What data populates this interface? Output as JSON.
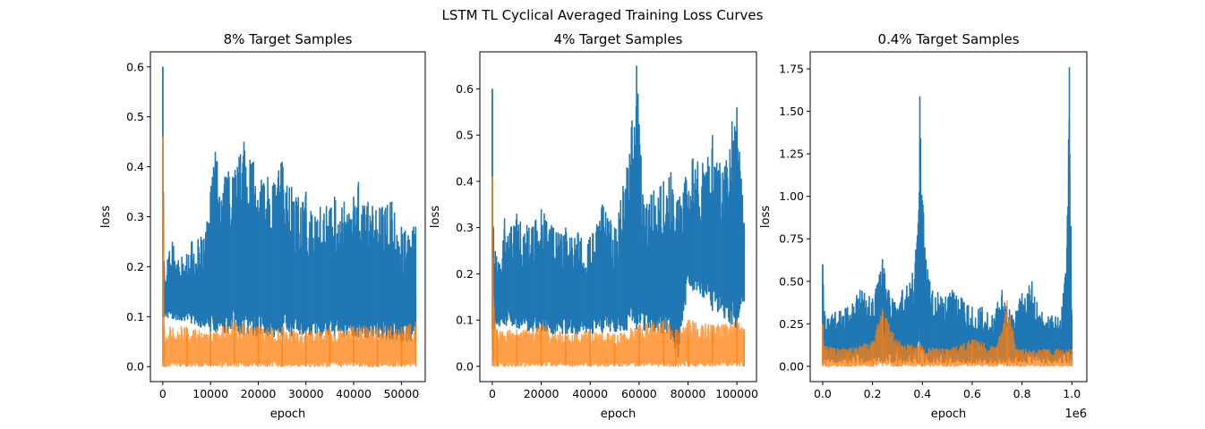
{
  "figure": {
    "suptitle": "LSTM TL Cyclical Averaged Training Loss Curves"
  },
  "colors": {
    "blue": "#1f77b4",
    "orange": "#ff7f0e"
  },
  "chart_data": [
    {
      "type": "line",
      "title": "8% Target Samples",
      "xlabel": "epoch",
      "ylabel": "loss",
      "xlim": [
        -2600,
        55000
      ],
      "ylim": [
        -0.03,
        0.63
      ],
      "xticks": [
        0,
        10000,
        20000,
        30000,
        40000,
        50000
      ],
      "xtick_labels": [
        "0",
        "10000",
        "20000",
        "30000",
        "40000",
        "50000"
      ],
      "yticks": [
        0.0,
        0.1,
        0.2,
        0.3,
        0.4,
        0.5,
        0.6
      ],
      "ytick_labels": [
        "0.0",
        "0.1",
        "0.2",
        "0.3",
        "0.4",
        "0.5",
        "0.6"
      ],
      "x_offset_label": "",
      "series": [
        {
          "color": "#1f77b4",
          "x_max": 53000,
          "points": [
            [
              0,
              0.6
            ],
            [
              300,
              0.2
            ],
            [
              2000,
              0.25
            ],
            [
              4000,
              0.22
            ],
            [
              6000,
              0.25
            ],
            [
              8000,
              0.26
            ],
            [
              10000,
              0.35
            ],
            [
              11000,
              0.43
            ],
            [
              13000,
              0.38
            ],
            [
              16000,
              0.42
            ],
            [
              17000,
              0.45
            ],
            [
              19000,
              0.41
            ],
            [
              22000,
              0.38
            ],
            [
              25000,
              0.41
            ],
            [
              27000,
              0.36
            ],
            [
              30000,
              0.35
            ],
            [
              33000,
              0.32
            ],
            [
              36000,
              0.34
            ],
            [
              38000,
              0.33
            ],
            [
              40000,
              0.34
            ],
            [
              41000,
              0.37
            ],
            [
              43000,
              0.33
            ],
            [
              46000,
              0.32
            ],
            [
              48000,
              0.33
            ],
            [
              50000,
              0.28
            ],
            [
              53000,
              0.28
            ]
          ],
          "lower": [
            [
              0,
              0.1
            ],
            [
              5000,
              0.09
            ],
            [
              10000,
              0.07
            ],
            [
              20000,
              0.06
            ],
            [
              30000,
              0.06
            ],
            [
              40000,
              0.06
            ],
            [
              53000,
              0.05
            ]
          ]
        },
        {
          "color": "#ff7f0e",
          "x_max": 53000,
          "points": [
            [
              0,
              0.46
            ],
            [
              300,
              0.08
            ],
            [
              5000,
              0.08
            ],
            [
              10000,
              0.07
            ],
            [
              15000,
              0.09
            ],
            [
              20000,
              0.08
            ],
            [
              25000,
              0.08
            ],
            [
              30000,
              0.07
            ],
            [
              35000,
              0.08
            ],
            [
              40000,
              0.08
            ],
            [
              45000,
              0.08
            ],
            [
              50000,
              0.08
            ],
            [
              53000,
              0.09
            ]
          ],
          "lower": [
            [
              0,
              0.0
            ],
            [
              53000,
              0.0
            ]
          ]
        }
      ]
    },
    {
      "type": "line",
      "title": "4% Target Samples",
      "xlabel": "epoch",
      "ylabel": "loss",
      "xlim": [
        -5100,
        108000
      ],
      "ylim": [
        -0.033,
        0.68
      ],
      "xticks": [
        0,
        20000,
        40000,
        60000,
        80000,
        100000
      ],
      "xtick_labels": [
        "0",
        "20000",
        "40000",
        "60000",
        "80000",
        "100000"
      ],
      "yticks": [
        0.0,
        0.1,
        0.2,
        0.3,
        0.4,
        0.5,
        0.6
      ],
      "ytick_labels": [
        "0.0",
        "0.1",
        "0.2",
        "0.3",
        "0.4",
        "0.5",
        "0.6"
      ],
      "x_offset_label": "",
      "series": [
        {
          "color": "#1f77b4",
          "x_max": 103000,
          "points": [
            [
              0,
              0.6
            ],
            [
              500,
              0.3
            ],
            [
              3000,
              0.22
            ],
            [
              5000,
              0.32
            ],
            [
              10000,
              0.33
            ],
            [
              15000,
              0.3
            ],
            [
              20000,
              0.34
            ],
            [
              25000,
              0.3
            ],
            [
              30000,
              0.3
            ],
            [
              35000,
              0.29
            ],
            [
              40000,
              0.28
            ],
            [
              45000,
              0.35
            ],
            [
              50000,
              0.3
            ],
            [
              55000,
              0.43
            ],
            [
              59000,
              0.65
            ],
            [
              62000,
              0.35
            ],
            [
              66000,
              0.38
            ],
            [
              70000,
              0.4
            ],
            [
              73000,
              0.42
            ],
            [
              76000,
              0.36
            ],
            [
              79000,
              0.41
            ],
            [
              82000,
              0.45
            ],
            [
              86000,
              0.44
            ],
            [
              90000,
              0.5
            ],
            [
              95000,
              0.43
            ],
            [
              98000,
              0.53
            ],
            [
              100000,
              0.56
            ],
            [
              103000,
              0.31
            ]
          ],
          "lower": [
            [
              0,
              0.08
            ],
            [
              5000,
              0.09
            ],
            [
              20000,
              0.07
            ],
            [
              40000,
              0.07
            ],
            [
              60000,
              0.08
            ],
            [
              72000,
              0.07
            ],
            [
              76000,
              0.02
            ],
            [
              80000,
              0.17
            ],
            [
              86000,
              0.15
            ],
            [
              90000,
              0.12
            ],
            [
              96000,
              0.1
            ],
            [
              100000,
              0.08
            ],
            [
              103000,
              0.14
            ]
          ]
        },
        {
          "color": "#ff7f0e",
          "x_max": 103000,
          "points": [
            [
              0,
              0.41
            ],
            [
              500,
              0.15
            ],
            [
              2000,
              0.08
            ],
            [
              10000,
              0.08
            ],
            [
              20000,
              0.09
            ],
            [
              30000,
              0.07
            ],
            [
              40000,
              0.08
            ],
            [
              50000,
              0.07
            ],
            [
              60000,
              0.09
            ],
            [
              70000,
              0.1
            ],
            [
              75000,
              0.08
            ],
            [
              80000,
              0.1
            ],
            [
              90000,
              0.09
            ],
            [
              100000,
              0.1
            ],
            [
              103000,
              0.08
            ]
          ],
          "lower": [
            [
              0,
              0.0
            ],
            [
              103000,
              0.0
            ]
          ]
        }
      ]
    },
    {
      "type": "line",
      "title": "0.4% Target Samples",
      "xlabel": "epoch",
      "ylabel": "loss",
      "xlim": [
        -0.05,
        1.06
      ],
      "ylim": [
        -0.09,
        1.85
      ],
      "xticks": [
        0.0,
        0.2,
        0.4,
        0.6,
        0.8,
        1.0
      ],
      "xtick_labels": [
        "0.0",
        "0.2",
        "0.4",
        "0.6",
        "0.8",
        "1.0"
      ],
      "yticks": [
        0.0,
        0.25,
        0.5,
        0.75,
        1.0,
        1.25,
        1.5,
        1.75
      ],
      "ytick_labels": [
        "0.00",
        "0.25",
        "0.50",
        "0.75",
        "1.00",
        "1.25",
        "1.50",
        "1.75"
      ],
      "x_offset_label": "1e6",
      "series": [
        {
          "color": "#1f77b4",
          "x_max": 1.0,
          "points": [
            [
              0,
              0.6
            ],
            [
              0.01,
              0.3
            ],
            [
              0.05,
              0.32
            ],
            [
              0.1,
              0.35
            ],
            [
              0.15,
              0.45
            ],
            [
              0.2,
              0.4
            ],
            [
              0.24,
              0.63
            ],
            [
              0.28,
              0.4
            ],
            [
              0.32,
              0.45
            ],
            [
              0.36,
              0.55
            ],
            [
              0.38,
              0.77
            ],
            [
              0.39,
              1.59
            ],
            [
              0.41,
              0.7
            ],
            [
              0.43,
              0.5
            ],
            [
              0.48,
              0.4
            ],
            [
              0.52,
              0.45
            ],
            [
              0.56,
              0.4
            ],
            [
              0.6,
              0.35
            ],
            [
              0.64,
              0.35
            ],
            [
              0.68,
              0.3
            ],
            [
              0.72,
              0.45
            ],
            [
              0.76,
              0.3
            ],
            [
              0.8,
              0.43
            ],
            [
              0.84,
              0.5
            ],
            [
              0.88,
              0.32
            ],
            [
              0.92,
              0.3
            ],
            [
              0.96,
              0.35
            ],
            [
              0.98,
              0.7
            ],
            [
              0.99,
              1.76
            ],
            [
              1.0,
              0.3
            ]
          ],
          "lower": [
            [
              0,
              0.02
            ],
            [
              1.0,
              0.02
            ]
          ]
        },
        {
          "color": "#ff7f0e",
          "x_max": 1.0,
          "points": [
            [
              0,
              0.25
            ],
            [
              0.01,
              0.12
            ],
            [
              0.1,
              0.1
            ],
            [
              0.2,
              0.15
            ],
            [
              0.24,
              0.34
            ],
            [
              0.3,
              0.15
            ],
            [
              0.4,
              0.12
            ],
            [
              0.5,
              0.1
            ],
            [
              0.6,
              0.16
            ],
            [
              0.7,
              0.12
            ],
            [
              0.74,
              0.39
            ],
            [
              0.78,
              0.1
            ],
            [
              0.9,
              0.1
            ],
            [
              1.0,
              0.1
            ]
          ],
          "lower": [
            [
              0,
              0.0
            ],
            [
              1.0,
              0.0
            ]
          ]
        }
      ]
    }
  ]
}
